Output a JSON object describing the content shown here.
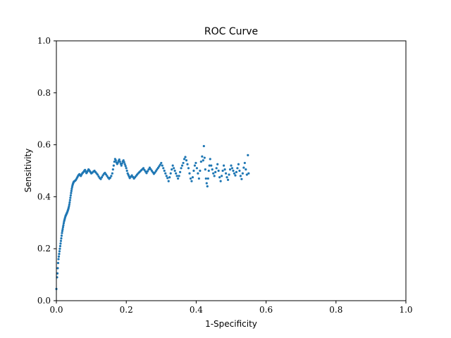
{
  "chart_data": {
    "type": "scatter",
    "title": "ROC Curve",
    "xlabel": "1-Specificity",
    "ylabel": "Sensitivity",
    "xlim": [
      0,
      1
    ],
    "ylim": [
      0,
      1
    ],
    "x_ticks": [
      "0.0",
      "0.2",
      "0.4",
      "0.6",
      "0.8",
      "1.0"
    ],
    "y_ticks": [
      "0.0",
      "0.2",
      "0.4",
      "0.6",
      "0.8",
      "1.0"
    ],
    "grid": false,
    "legend": "none",
    "marker_color": "#1f77b4",
    "series": [
      {
        "x": [
          0.0,
          0.002,
          0.003,
          0.004,
          0.005,
          0.006,
          0.007,
          0.008,
          0.009,
          0.01,
          0.011,
          0.012,
          0.013,
          0.014,
          0.015,
          0.016,
          0.017,
          0.018,
          0.019,
          0.02,
          0.021,
          0.022,
          0.023,
          0.024,
          0.025,
          0.026,
          0.027,
          0.028,
          0.029,
          0.03,
          0.031,
          0.032,
          0.033,
          0.034,
          0.035,
          0.036,
          0.037,
          0.038,
          0.039,
          0.04,
          0.041,
          0.042,
          0.043,
          0.044,
          0.045,
          0.046,
          0.047,
          0.048,
          0.049,
          0.05,
          0.052,
          0.054,
          0.056,
          0.058,
          0.06,
          0.062,
          0.064,
          0.066,
          0.068,
          0.07,
          0.072,
          0.074,
          0.076,
          0.078,
          0.08,
          0.082,
          0.084,
          0.086,
          0.088,
          0.09,
          0.092,
          0.094,
          0.096,
          0.098,
          0.1,
          0.103,
          0.106,
          0.109,
          0.112,
          0.115,
          0.118,
          0.121,
          0.124,
          0.127,
          0.13,
          0.133,
          0.136,
          0.139,
          0.142,
          0.145,
          0.148,
          0.151,
          0.154,
          0.157,
          0.16,
          0.162,
          0.164,
          0.166,
          0.168,
          0.17,
          0.172,
          0.174,
          0.176,
          0.178,
          0.18,
          0.182,
          0.184,
          0.186,
          0.188,
          0.19,
          0.192,
          0.194,
          0.196,
          0.198,
          0.2,
          0.202,
          0.204,
          0.206,
          0.208,
          0.21,
          0.213,
          0.216,
          0.219,
          0.222,
          0.225,
          0.228,
          0.231,
          0.234,
          0.237,
          0.24,
          0.243,
          0.246,
          0.249,
          0.252,
          0.255,
          0.258,
          0.261,
          0.264,
          0.267,
          0.27,
          0.273,
          0.276,
          0.279,
          0.282,
          0.285,
          0.288,
          0.291,
          0.294,
          0.297,
          0.3,
          0.303,
          0.306,
          0.309,
          0.312,
          0.315,
          0.318,
          0.321,
          0.324,
          0.327,
          0.33,
          0.333,
          0.336,
          0.339,
          0.342,
          0.345,
          0.348,
          0.351,
          0.354,
          0.357,
          0.36,
          0.363,
          0.366,
          0.369,
          0.372,
          0.375,
          0.378,
          0.381,
          0.384,
          0.387,
          0.39,
          0.393,
          0.396,
          0.399,
          0.402,
          0.405,
          0.408,
          0.411,
          0.414,
          0.417,
          0.42,
          0.422,
          0.424,
          0.426,
          0.428,
          0.43,
          0.432,
          0.434,
          0.436,
          0.438,
          0.44,
          0.443,
          0.446,
          0.449,
          0.452,
          0.455,
          0.458,
          0.461,
          0.464,
          0.467,
          0.47,
          0.473,
          0.476,
          0.479,
          0.482,
          0.485,
          0.488,
          0.491,
          0.494,
          0.497,
          0.5,
          0.503,
          0.506,
          0.509,
          0.512,
          0.515,
          0.518,
          0.521,
          0.524,
          0.527,
          0.53,
          0.533,
          0.536,
          0.539,
          0.542,
          0.545,
          0.548,
          0.55
        ],
        "y": [
          0.045,
          0.09,
          0.105,
          0.125,
          0.145,
          0.16,
          0.17,
          0.18,
          0.19,
          0.2,
          0.21,
          0.22,
          0.23,
          0.24,
          0.25,
          0.26,
          0.268,
          0.275,
          0.283,
          0.29,
          0.298,
          0.305,
          0.31,
          0.315,
          0.32,
          0.325,
          0.328,
          0.331,
          0.334,
          0.337,
          0.34,
          0.344,
          0.348,
          0.352,
          0.357,
          0.363,
          0.37,
          0.378,
          0.387,
          0.396,
          0.405,
          0.414,
          0.422,
          0.43,
          0.437,
          0.443,
          0.448,
          0.452,
          0.455,
          0.458,
          0.46,
          0.462,
          0.465,
          0.47,
          0.475,
          0.48,
          0.484,
          0.487,
          0.483,
          0.48,
          0.485,
          0.49,
          0.493,
          0.496,
          0.5,
          0.503,
          0.497,
          0.491,
          0.495,
          0.5,
          0.505,
          0.502,
          0.498,
          0.494,
          0.49,
          0.493,
          0.497,
          0.5,
          0.495,
          0.49,
          0.485,
          0.478,
          0.472,
          0.468,
          0.475,
          0.482,
          0.488,
          0.492,
          0.486,
          0.48,
          0.474,
          0.469,
          0.473,
          0.48,
          0.49,
          0.505,
          0.52,
          0.535,
          0.545,
          0.54,
          0.532,
          0.526,
          0.531,
          0.538,
          0.543,
          0.535,
          0.527,
          0.52,
          0.528,
          0.536,
          0.54,
          0.533,
          0.525,
          0.518,
          0.51,
          0.5,
          0.49,
          0.484,
          0.478,
          0.472,
          0.477,
          0.482,
          0.476,
          0.47,
          0.475,
          0.48,
          0.485,
          0.49,
          0.494,
          0.498,
          0.502,
          0.506,
          0.51,
          0.503,
          0.497,
          0.491,
          0.498,
          0.505,
          0.512,
          0.506,
          0.5,
          0.494,
          0.488,
          0.493,
          0.499,
          0.505,
          0.511,
          0.517,
          0.523,
          0.53,
          0.52,
          0.51,
          0.5,
          0.49,
          0.48,
          0.472,
          0.46,
          0.475,
          0.49,
          0.505,
          0.52,
          0.51,
          0.5,
          0.49,
          0.48,
          0.47,
          0.48,
          0.495,
          0.51,
          0.52,
          0.53,
          0.545,
          0.553,
          0.54,
          0.525,
          0.51,
          0.49,
          0.47,
          0.46,
          0.475,
          0.5,
          0.52,
          0.53,
          0.51,
          0.49,
          0.47,
          0.5,
          0.535,
          0.555,
          0.54,
          0.595,
          0.55,
          0.505,
          0.47,
          0.452,
          0.44,
          0.47,
          0.5,
          0.52,
          0.545,
          0.52,
          0.505,
          0.49,
          0.48,
          0.495,
          0.51,
          0.525,
          0.5,
          0.475,
          0.46,
          0.48,
          0.5,
          0.52,
          0.505,
          0.49,
          0.475,
          0.465,
          0.485,
          0.505,
          0.52,
          0.51,
          0.5,
          0.49,
          0.482,
          0.495,
          0.51,
          0.525,
          0.5,
          0.48,
          0.468,
          0.49,
          0.512,
          0.53,
          0.505,
          0.485,
          0.56,
          0.49
        ]
      }
    ]
  }
}
